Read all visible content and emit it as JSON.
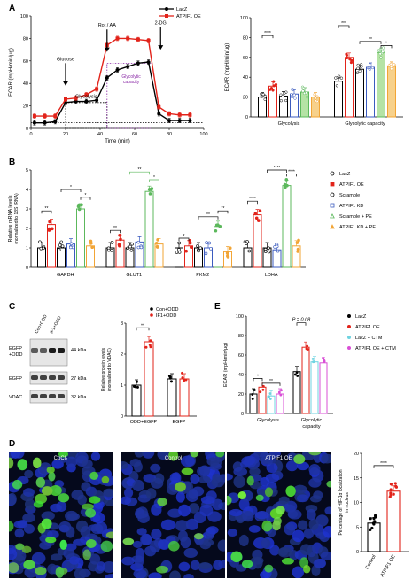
{
  "panels": {
    "A": "A",
    "B": "B",
    "C": "C",
    "D": "D",
    "E": "E"
  },
  "colors": {
    "black": "#000000",
    "red": "#e2231a",
    "purple": "#8a2aa6",
    "green": "#5cb85c",
    "blue": "#3b5bbf",
    "orange": "#f2a536",
    "cyan": "#6fd3e0",
    "magenta": "#d94fd6"
  },
  "chart_data": [
    {
      "id": "A-left",
      "type": "line",
      "xlabel": "Time (min)",
      "ylabel": "ECAR (mpH/min/μg)",
      "xlim": [
        0,
        100
      ],
      "ylim": [
        0,
        100
      ],
      "xticks": [
        "0",
        "20",
        "40",
        "60",
        "80",
        "100"
      ],
      "yticks": [
        "0",
        "20",
        "40",
        "60",
        "80",
        "100"
      ],
      "legend": [
        "LacZ",
        "ATPIF1 OE"
      ],
      "legend_position": "top-right",
      "annotations": {
        "glucose": "Glucose",
        "rot": "Rot / AA",
        "dg": "2-DG",
        "glycolysis": "Glycolysis",
        "capacity": "Glycolytic capacity"
      },
      "x": [
        2,
        8,
        14,
        20,
        26,
        32,
        38,
        44,
        50,
        56,
        62,
        68,
        74,
        80,
        86,
        92
      ],
      "series": [
        {
          "name": "LacZ",
          "values": [
            5,
            5,
            6,
            23,
            24,
            24,
            25,
            45,
            52,
            55,
            58,
            59,
            13,
            7,
            7,
            7
          ]
        },
        {
          "name": "ATPIF1 OE",
          "values": [
            11,
            11,
            11,
            26,
            27,
            30,
            35,
            74,
            80,
            80,
            79,
            78,
            19,
            13,
            12,
            12
          ]
        }
      ]
    },
    {
      "id": "A-right",
      "type": "bar",
      "ylabel": "ECAR (mpH/min/μg)",
      "ylim": [
        0,
        100
      ],
      "yticks": [
        "0",
        "20",
        "40",
        "60",
        "80",
        "100"
      ],
      "categories": [
        "Glycolysis",
        "Glycolytic capacity"
      ],
      "series": [
        {
          "values": [
            20,
            36
          ]
        },
        {
          "values": [
            31,
            60
          ]
        },
        {
          "values": [
            21,
            48
          ]
        },
        {
          "values": [
            23,
            50
          ]
        },
        {
          "values": [
            25,
            65
          ]
        },
        {
          "values": [
            20,
            51
          ]
        }
      ],
      "significance": [
        "****",
        "***",
        "**",
        "*"
      ]
    },
    {
      "id": "B",
      "type": "bar",
      "ylabel": "Relative mRNA levels (normalized to 18S rRNA)",
      "ylim": [
        0,
        5
      ],
      "yticks": [
        "0",
        "1",
        "2",
        "3",
        "4",
        "5"
      ],
      "categories": [
        "GAPDH",
        "GLUT1",
        "PKM2",
        "LDHA"
      ],
      "series": [
        {
          "name": "LacZ",
          "values": [
            1.0,
            1.0,
            1.0,
            1.0
          ]
        },
        {
          "name": "ATPIF1 OE",
          "values": [
            2.2,
            1.4,
            1.1,
            2.7
          ]
        },
        {
          "name": "Scramble",
          "values": [
            1.0,
            1.0,
            1.0,
            1.0
          ]
        },
        {
          "name": "ATPIF1 KD",
          "values": [
            1.2,
            1.3,
            1.0,
            0.9
          ]
        },
        {
          "name": "Scramble + PE",
          "values": [
            3.0,
            3.9,
            2.1,
            4.2
          ]
        },
        {
          "name": "ATPIF1 KD + PE",
          "values": [
            1.1,
            1.2,
            0.8,
            1.1
          ]
        }
      ],
      "significance": [
        "**",
        "*",
        "*",
        "**",
        "**",
        "*",
        "*",
        "**",
        "**",
        "****",
        "****",
        "****"
      ]
    },
    {
      "id": "C",
      "type": "bar",
      "ylabel": "Relative protein levels (normalized to VDAC)",
      "ylim": [
        0,
        3
      ],
      "yticks": [
        "0",
        "1",
        "2",
        "3"
      ],
      "categories": [
        "ODD+EGFP",
        "EGFP"
      ],
      "legend": [
        "Con+ODD",
        "IF1+ODD"
      ],
      "series": [
        {
          "name": "Con+ODD",
          "values": [
            1.0,
            1.2
          ]
        },
        {
          "name": "IF1+ODD",
          "values": [
            2.4,
            1.2
          ]
        }
      ],
      "significance": [
        "**"
      ]
    },
    {
      "id": "E",
      "type": "bar",
      "ylabel": "ECAR (mpH/min/μg)",
      "ylim": [
        0,
        100
      ],
      "yticks": [
        "0",
        "20",
        "40",
        "60",
        "80",
        "100"
      ],
      "categories": [
        "Glycolysis",
        "Glycolytic capacity"
      ],
      "series": [
        {
          "name": "LacZ",
          "values": [
            20,
            43
          ]
        },
        {
          "name": "ATPIF1 OE",
          "values": [
            27,
            68
          ]
        },
        {
          "name": "LacZ + CTM",
          "values": [
            18,
            53
          ]
        },
        {
          "name": "ATPIF1 OE + CTM",
          "values": [
            20,
            52
          ]
        }
      ],
      "significance": [
        "*",
        "**"
      ],
      "pvalue_label": "P = 0.08"
    },
    {
      "id": "D-right",
      "type": "bar",
      "ylabel": "Percentage of HIF-1α localization in nucleus",
      "ylim": [
        0,
        20
      ],
      "yticks": [
        "0",
        "5",
        "10",
        "15",
        "20"
      ],
      "categories": [
        "Control",
        "ATPIF1 OE"
      ],
      "values": [
        5.8,
        12.3
      ],
      "significance": [
        "****"
      ]
    }
  ],
  "western": {
    "col_labels": [
      "Con+ODD",
      "IF1+ODD"
    ],
    "rows": [
      {
        "label": "EGFP\n+ODD",
        "label1": "EGFP",
        "label2": "+ODD",
        "kda": "44 kDa"
      },
      {
        "label": "EGFP",
        "kda": "27 kDa"
      },
      {
        "label": "VDAC",
        "kda": "32 kDa"
      }
    ]
  },
  "micrographs": {
    "titles": [
      "CoCl₂",
      "Control",
      "ATPIF1 OE"
    ]
  }
}
